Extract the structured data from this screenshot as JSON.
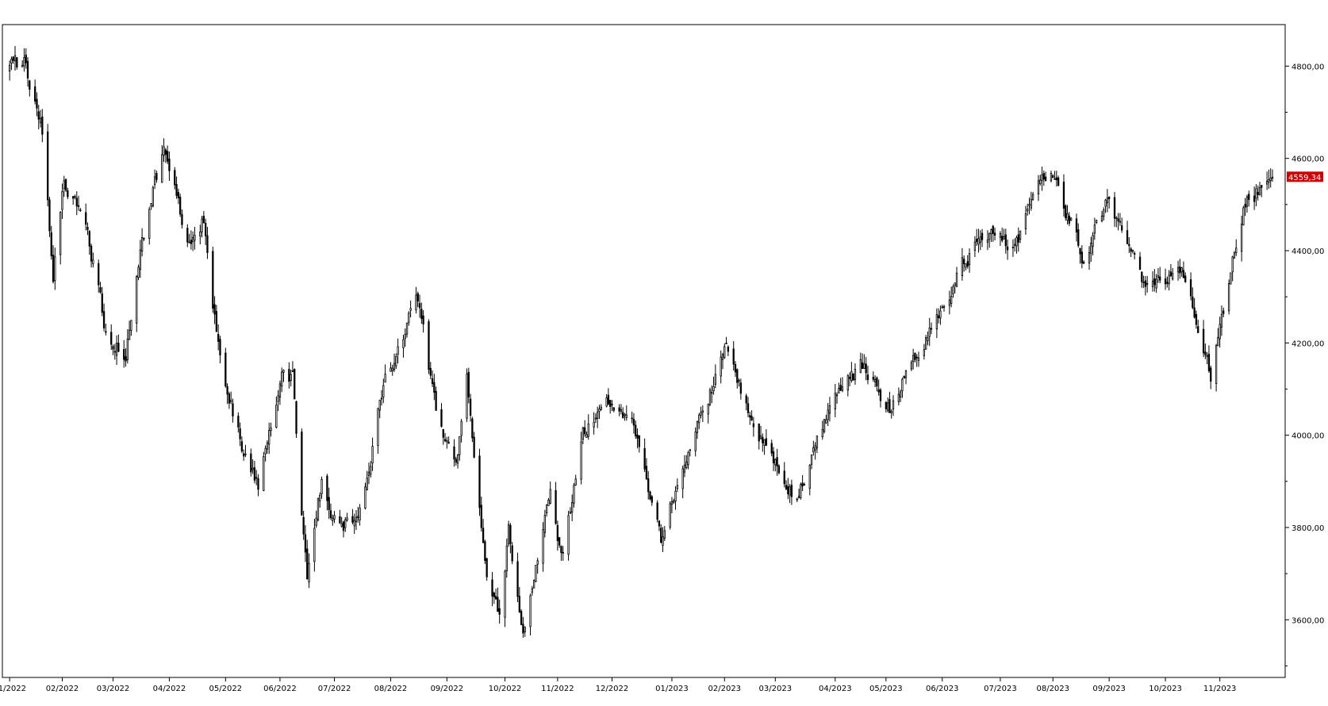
{
  "chart_data": {
    "type": "candlestick",
    "title": "",
    "xlabel": "",
    "ylabel": "",
    "grid": false,
    "ylim": [
      3475,
      4890
    ],
    "xlim": [
      "2021-12-30",
      "2023-12-07"
    ],
    "y_ticks": [
      3600,
      3800,
      4000,
      4200,
      4400,
      4600,
      4800
    ],
    "y_tick_labels": [
      "3600,00",
      "3800,00",
      "4000,00",
      "4200,00",
      "4400,00",
      "4600,00",
      "4800,00"
    ],
    "x_ticks": [
      "2022-01-03",
      "2022-02-01",
      "2022-03-01",
      "2022-04-01",
      "2022-05-02",
      "2022-06-01",
      "2022-07-01",
      "2022-08-01",
      "2022-09-01",
      "2022-10-03",
      "2022-11-01",
      "2022-12-01",
      "2023-01-03",
      "2023-02-01",
      "2023-03-01",
      "2023-04-03",
      "2023-05-01",
      "2023-06-01",
      "2023-07-03",
      "2023-08-01",
      "2023-09-01",
      "2023-10-02",
      "2023-11-01"
    ],
    "x_tick_labels": [
      "01/2022",
      "02/2022",
      "03/2022",
      "04/2022",
      "05/2022",
      "06/2022",
      "07/2022",
      "08/2022",
      "09/2022",
      "10/2022",
      "11/2022",
      "12/2022",
      "01/2023",
      "02/2023",
      "03/2023",
      "04/2023",
      "05/2023",
      "06/2023",
      "07/2023",
      "08/2023",
      "09/2023",
      "10/2023",
      "11/2023"
    ],
    "last_price": 4559.34,
    "last_price_label": "4559,34",
    "last_price_color": "#cc0000",
    "up_color": "#ffffff",
    "down_color": "#000000",
    "outline_color": "#000000",
    "anchors": [
      [
        "2022-01-03",
        4790
      ],
      [
        "2022-01-04",
        4795
      ],
      [
        "2022-01-12",
        4805
      ],
      [
        "2022-01-20",
        4680
      ],
      [
        "2022-01-27",
        4350
      ],
      [
        "2022-02-02",
        4550
      ],
      [
        "2022-02-14",
        4450
      ],
      [
        "2022-02-24",
        4250
      ],
      [
        "2022-03-08",
        4170
      ],
      [
        "2022-03-17",
        4420
      ],
      [
        "2022-03-29",
        4620
      ],
      [
        "2022-04-12",
        4400
      ],
      [
        "2022-04-20",
        4470
      ],
      [
        "2022-04-29",
        4150
      ],
      [
        "2022-05-11",
        3980
      ],
      [
        "2022-05-20",
        3900
      ],
      [
        "2022-06-02",
        4150
      ],
      [
        "2022-06-08",
        4120
      ],
      [
        "2022-06-16",
        3680
      ],
      [
        "2022-06-24",
        3900
      ],
      [
        "2022-07-01",
        3820
      ],
      [
        "2022-07-14",
        3800
      ],
      [
        "2022-07-29",
        4130
      ],
      [
        "2022-08-16",
        4300
      ],
      [
        "2022-08-26",
        4050
      ],
      [
        "2022-09-06",
        3920
      ],
      [
        "2022-09-12",
        4120
      ],
      [
        "2022-09-23",
        3700
      ],
      [
        "2022-09-30",
        3600
      ],
      [
        "2022-10-05",
        3790
      ],
      [
        "2022-10-13",
        3580
      ],
      [
        "2022-10-28",
        3900
      ],
      [
        "2022-11-03",
        3730
      ],
      [
        "2022-11-15",
        4010
      ],
      [
        "2022-12-01",
        4080
      ],
      [
        "2022-12-13",
        4020
      ],
      [
        "2022-12-28",
        3780
      ],
      [
        "2023-01-12",
        3980
      ],
      [
        "2023-02-02",
        4180
      ],
      [
        "2023-02-24",
        3970
      ],
      [
        "2023-03-13",
        3850
      ],
      [
        "2023-03-30",
        4050
      ],
      [
        "2023-04-18",
        4150
      ],
      [
        "2023-05-04",
        4060
      ],
      [
        "2023-05-19",
        4190
      ],
      [
        "2023-06-13",
        4370
      ],
      [
        "2023-06-30",
        4450
      ],
      [
        "2023-07-10",
        4400
      ],
      [
        "2023-07-31",
        4590
      ],
      [
        "2023-08-18",
        4380
      ],
      [
        "2023-08-31",
        4510
      ],
      [
        "2023-09-21",
        4330
      ],
      [
        "2023-10-12",
        4350
      ],
      [
        "2023-10-27",
        4120
      ],
      [
        "2023-11-14",
        4500
      ],
      [
        "2023-11-30",
        4559.34
      ]
    ]
  }
}
